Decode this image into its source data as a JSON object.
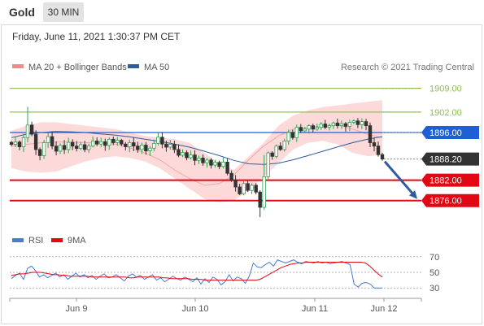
{
  "header": {
    "asset": "Gold",
    "timeframe": "30 MIN",
    "datetime": "Friday, June 11, 2021 1:30:37 PM CET"
  },
  "legend": {
    "bollinger_label": "MA 20 + Bollinger Bands",
    "ma50_label": "MA 50",
    "rsi_label": "RSI",
    "rsi_ma_label": "9MA"
  },
  "credit": "Research © 2021 Trading Central",
  "colors": {
    "candle_up": "#31a354",
    "candle_down": "#333333",
    "bollinger": "#f4a6a6",
    "ma50": "#2e5c9e",
    "resistance": "#8cc04a",
    "pivot": "#1f5fd6",
    "support": "#e30613",
    "last_price": "#333333",
    "rsi": "#4a7ad4",
    "rsi_ma": "#e30613"
  },
  "chart_data": [
    {
      "type": "candlestick",
      "title": "",
      "ylim": [
        1869,
        1912
      ],
      "x_ticks": [
        "Jun 9",
        "Jun 10",
        "Jun 11",
        "Jun 12"
      ],
      "levels": [
        {
          "value": 1909.0,
          "label": "1909.00",
          "kind": "resistance"
        },
        {
          "value": 1902.0,
          "label": "1902.00",
          "kind": "resistance"
        },
        {
          "value": 1896.0,
          "label": "1896.00",
          "kind": "pivot"
        },
        {
          "value": 1888.2,
          "label": "1888.20",
          "kind": "last"
        },
        {
          "value": 1882.0,
          "label": "1882.00",
          "kind": "support"
        },
        {
          "value": 1876.0,
          "label": "1876.00",
          "kind": "support"
        }
      ],
      "forecast_arrow": {
        "from": 1888.2,
        "to": 1876.0
      },
      "closes": [
        1892.5,
        1893.2,
        1891.8,
        1894.5,
        1898.2,
        1895.5,
        1891.0,
        1889.2,
        1893.0,
        1894.8,
        1892.0,
        1890.5,
        1892.2,
        1891.0,
        1893.1,
        1892.0,
        1891.3,
        1892.4,
        1891.0,
        1892.0,
        1893.5,
        1892.6,
        1893.3,
        1892.2,
        1894.0,
        1893.0,
        1893.7,
        1892.6,
        1891.8,
        1893.0,
        1892.0,
        1891.0,
        1892.3,
        1890.6,
        1891.4,
        1892.8,
        1894.6,
        1892.6,
        1891.7,
        1892.5,
        1891.0,
        1889.3,
        1890.1,
        1888.6,
        1889.4,
        1887.8,
        1888.5,
        1887.1,
        1887.9,
        1886.4,
        1887.2,
        1886.0,
        1887.3,
        1884.0,
        1882.0,
        1880.0,
        1878.0,
        1881.0,
        1879.0,
        1880.5,
        1878.5,
        1874.0,
        1883.0,
        1890.0,
        1889.0,
        1892.0,
        1891.0,
        1893.5,
        1896.0,
        1894.5,
        1897.5,
        1896.5,
        1897.0,
        1898.0,
        1897.0,
        1897.5,
        1898.5,
        1897.5,
        1898.0,
        1898.8,
        1898.0,
        1898.6,
        1897.8,
        1899.0,
        1899.4,
        1898.3,
        1899.2,
        1898.0,
        1893.0,
        1892.0,
        1889.5,
        1888.2
      ],
      "bollinger": {
        "upper": [
          1896.5,
          1898,
          1899,
          1899,
          1898.5,
          1898,
          1897.5,
          1897,
          1896,
          1895,
          1894.5,
          1894,
          1893,
          1890,
          1887,
          1885,
          1889,
          1893,
          1898,
          1901,
          1902.5,
          1903.5,
          1904,
          1904.5,
          1905,
          1905.5
        ],
        "lower": [
          1885.5,
          1884.5,
          1884.2,
          1884.5,
          1886,
          1887.5,
          1888.5,
          1889,
          1888.5,
          1887.5,
          1885.5,
          1882.5,
          1879.5,
          1876.5,
          1875.5,
          1876,
          1879,
          1883,
          1887,
          1891,
          1893,
          1893.5,
          1892.5,
          1890,
          1889,
          1889.5
        ],
        "middle": [
          1892,
          1892.5,
          1893,
          1893.2,
          1893.2,
          1893,
          1893,
          1892.6,
          1891.5,
          1890,
          1888,
          1885,
          1882.5,
          1880.5,
          1881,
          1883.5,
          1888,
          1892,
          1895,
          1897,
          1897.5,
          1898,
          1898.2,
          1897,
          1895.5,
          1894.5
        ]
      },
      "ma50": [
        1894.5,
        1895.5,
        1896.0,
        1896.3,
        1896.2,
        1896.0,
        1895.6,
        1895.2,
        1894.7,
        1894.0,
        1893.4,
        1892.6,
        1891.7,
        1890.5,
        1889.2,
        1887.8,
        1886.8,
        1886.6,
        1887.0,
        1888.0,
        1889.2,
        1890.5,
        1891.8,
        1893.0,
        1894.0,
        1894.8
      ]
    },
    {
      "type": "line",
      "title": "",
      "ylim": [
        25,
        75
      ],
      "y_ticks": [
        70,
        50,
        30
      ],
      "series": [
        {
          "name": "RSI",
          "values": [
            42,
            46,
            49,
            41,
            55,
            58,
            52,
            44,
            47,
            43,
            46,
            49,
            44,
            47,
            41,
            45,
            49,
            44,
            47,
            43,
            46,
            41,
            45,
            48,
            43,
            44,
            47,
            43,
            39,
            45,
            48,
            44,
            46,
            41,
            44,
            47,
            40,
            43,
            38,
            41,
            45,
            42,
            40,
            44,
            41,
            38,
            43,
            35,
            42,
            37,
            44,
            41,
            34,
            38,
            47,
            39,
            44,
            42,
            36,
            45,
            62,
            57,
            56,
            60,
            63,
            58,
            66,
            64,
            62,
            64,
            66,
            63,
            61,
            64,
            63,
            62,
            64,
            62,
            63,
            61,
            62,
            63,
            64,
            62,
            60,
            35,
            31,
            36,
            37,
            35,
            30,
            30,
            30
          ]
        },
        {
          "name": "9MA",
          "values": [
            46,
            47,
            48,
            48,
            49,
            50,
            50,
            50,
            49,
            48,
            47,
            47,
            46,
            46,
            45,
            45,
            45,
            45,
            45,
            44,
            44,
            44,
            44,
            44,
            44,
            44,
            44,
            44,
            43,
            43,
            44,
            44,
            44,
            44,
            44,
            44,
            43,
            43,
            42,
            42,
            42,
            42,
            42,
            41,
            41,
            41,
            40,
            40,
            40,
            40,
            40,
            40,
            40,
            40,
            40,
            40,
            40,
            40,
            40,
            41,
            44,
            47,
            50,
            53,
            56,
            58,
            60,
            61,
            62,
            62,
            63,
            63,
            63,
            63,
            63,
            63,
            63,
            63,
            63,
            63,
            63,
            63,
            63,
            63,
            62,
            58,
            53,
            48,
            44
          ]
        }
      ]
    }
  ]
}
